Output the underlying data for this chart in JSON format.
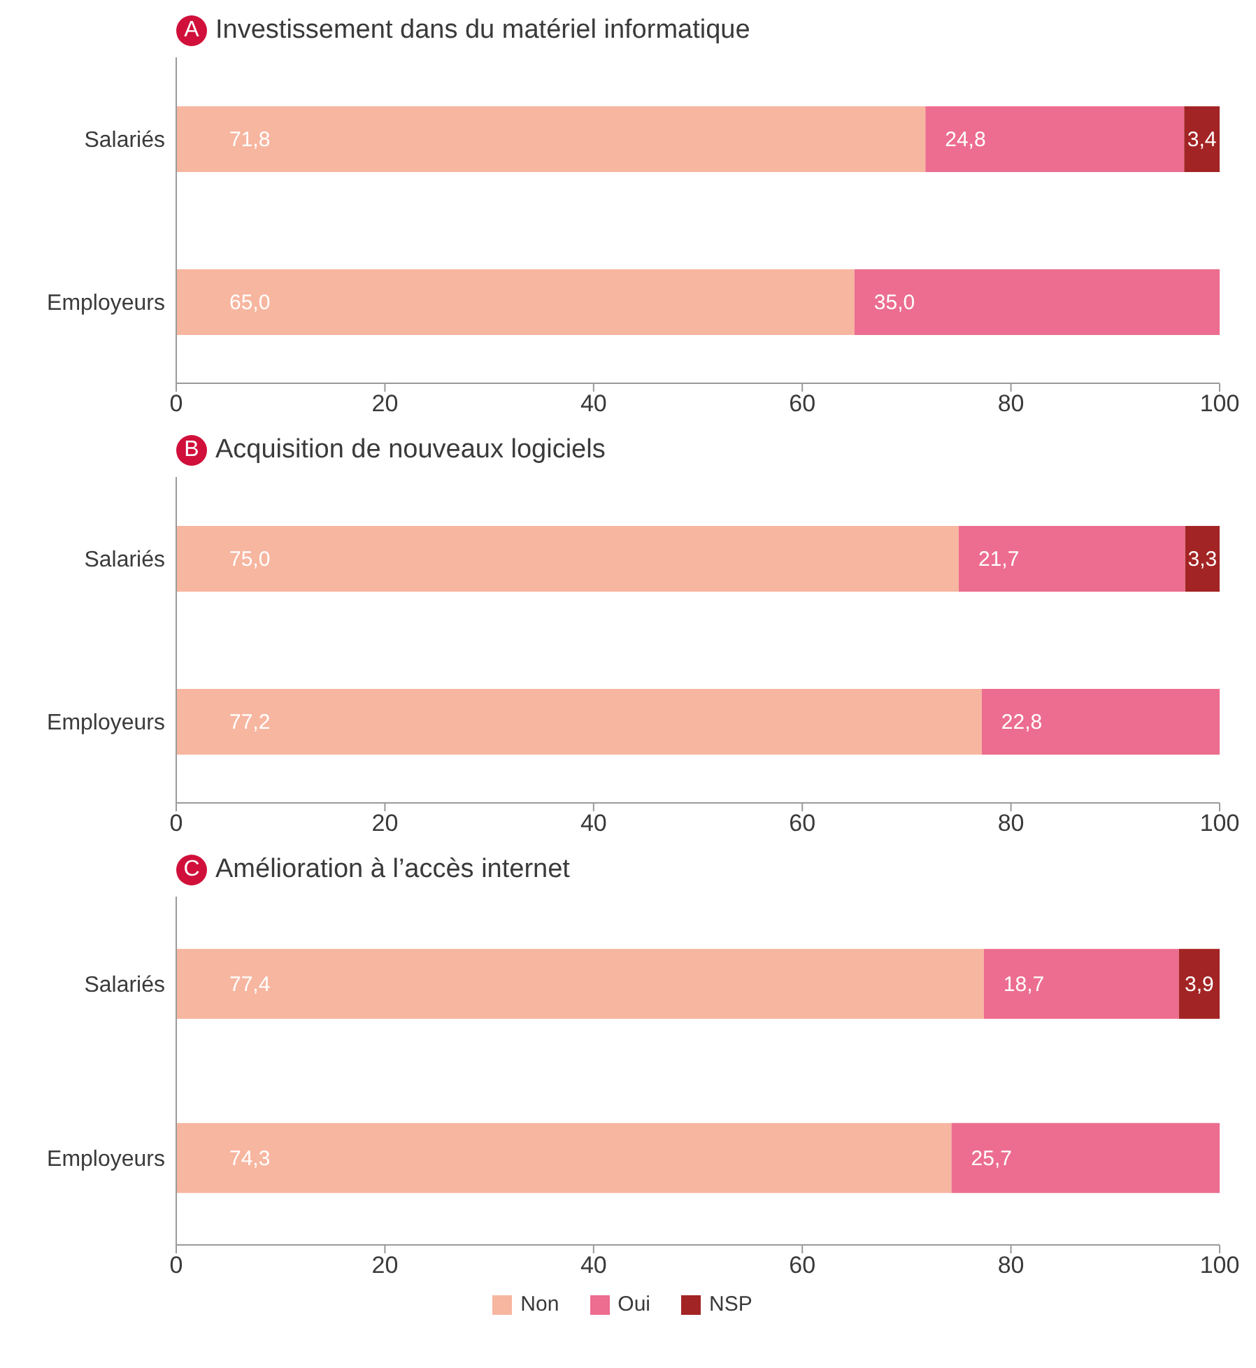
{
  "chart_data": [
    {
      "type": "bar",
      "orientation": "horizontal",
      "stacked": true,
      "title": "Investissement dans du matériel informatique",
      "annotations": [
        "A"
      ],
      "categories": [
        "Salariés",
        "Employeurs"
      ],
      "xlim": [
        0,
        100
      ],
      "xticks": [
        0,
        20,
        40,
        60,
        80,
        100
      ],
      "grid": false,
      "legend": false,
      "series": [
        {
          "color": "#f7b6a0",
          "values": [
            71.8,
            65.0
          ],
          "value_labels": [
            "71,8",
            "65,0"
          ]
        },
        {
          "color": "#ec6d8f",
          "values": [
            24.8,
            35.0
          ],
          "value_labels": [
            "24,8",
            "35,0"
          ]
        },
        {
          "color": "#a32424",
          "values": [
            3.4,
            null
          ],
          "value_labels": [
            "3,4",
            null
          ]
        }
      ]
    },
    {
      "type": "bar",
      "orientation": "horizontal",
      "stacked": true,
      "title": "Acquisition de nouveaux logiciels",
      "annotations": [
        "B"
      ],
      "categories": [
        "Salariés",
        "Employeurs"
      ],
      "xlim": [
        0,
        100
      ],
      "xticks": [
        0,
        20,
        40,
        60,
        80,
        100
      ],
      "grid": false,
      "legend": false,
      "series": [
        {
          "color": "#f7b6a0",
          "values": [
            75.0,
            77.2
          ],
          "value_labels": [
            "75,0",
            "77,2"
          ]
        },
        {
          "color": "#ec6d8f",
          "values": [
            21.7,
            22.8
          ],
          "value_labels": [
            "21,7",
            "22,8"
          ]
        },
        {
          "color": "#a32424",
          "values": [
            3.3,
            null
          ],
          "value_labels": [
            "3,3",
            null
          ]
        }
      ]
    },
    {
      "type": "bar",
      "orientation": "horizontal",
      "stacked": true,
      "title": "Amélioration à l’accès internet",
      "annotations": [
        "C"
      ],
      "categories": [
        "Salariés",
        "Employeurs"
      ],
      "xlim": [
        0,
        100
      ],
      "xticks": [
        0,
        20,
        40,
        60,
        80,
        100
      ],
      "grid": false,
      "legend": "bottom",
      "series": [
        {
          "name": "Non",
          "color": "#f7b6a0",
          "values": [
            77.4,
            74.3
          ],
          "value_labels": [
            "77,4",
            "74,3"
          ]
        },
        {
          "name": "Oui",
          "color": "#ec6d8f",
          "values": [
            18.7,
            25.7
          ],
          "value_labels": [
            "18,7",
            "25,7"
          ]
        },
        {
          "name": "NSP",
          "color": "#a32424",
          "values": [
            3.9,
            null
          ],
          "value_labels": [
            "3,9",
            null
          ]
        }
      ]
    }
  ]
}
